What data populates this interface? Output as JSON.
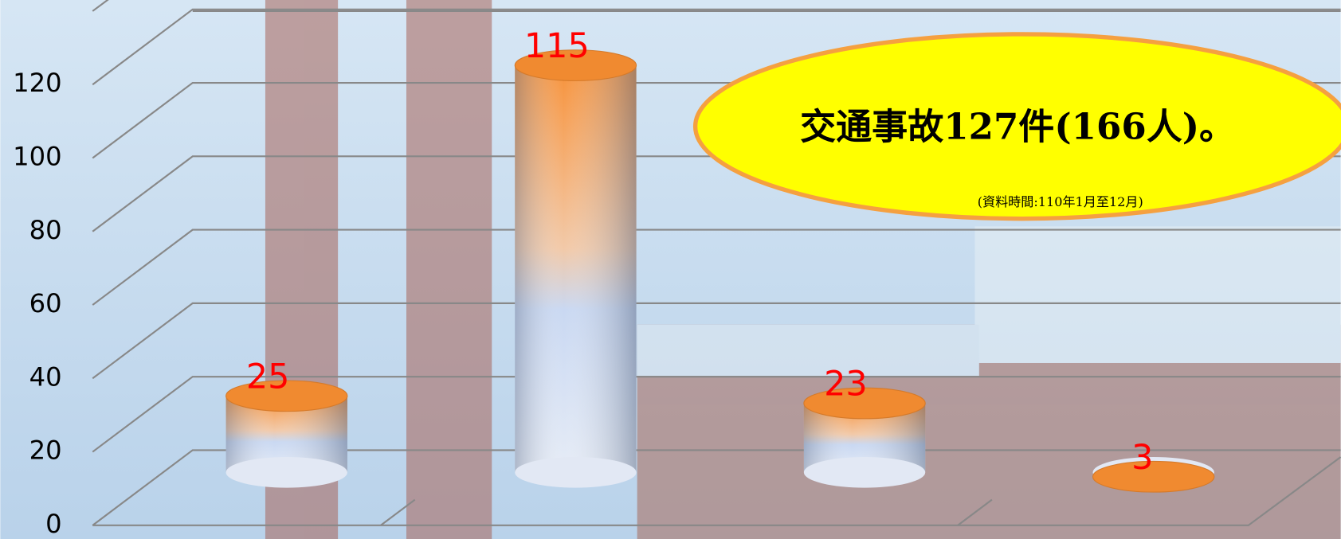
{
  "chart_data": {
    "type": "bar",
    "annotations": [
      "交通事故127件(166人)。",
      "(資料時間:110年1月至12月)"
    ],
    "categories": [
      null,
      null,
      null,
      null
    ],
    "values": [
      25,
      115,
      23,
      3
    ],
    "color": "#f08a30",
    "value_label_color": "#ff0000",
    "ylim": [
      0,
      140
    ],
    "yticks": [
      0,
      20,
      40,
      60,
      80,
      100,
      120
    ],
    "grid": true
  }
}
